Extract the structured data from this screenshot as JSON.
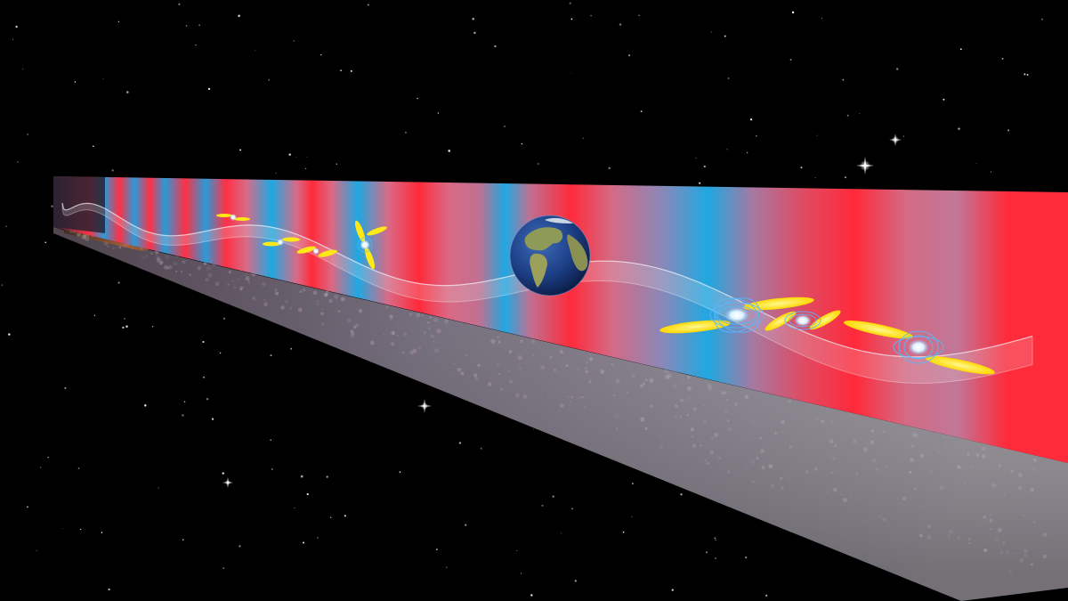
{
  "scene": {
    "subject": "gravitational-wave-pulsar-timing-array",
    "colors": {
      "space": "#000000",
      "stripe_red": "#ff2a3a",
      "stripe_pink": "#d86a84",
      "stripe_blue": "#1fa6e0",
      "floor_grey": "#8a8490",
      "wave_sheet": "#e8e8ee",
      "beam_yellow": "#ffe818",
      "field_blue": "#58b8ff",
      "earth_ocean": "#1c3f86",
      "earth_land": "#9a9a52"
    },
    "objects": {
      "earth": "planet-earth",
      "pulsars_near": 3,
      "pulsars_far": 4
    },
    "icons": [
      "star-sparkle-icon",
      "pulsar-icon",
      "earth-icon"
    ]
  }
}
